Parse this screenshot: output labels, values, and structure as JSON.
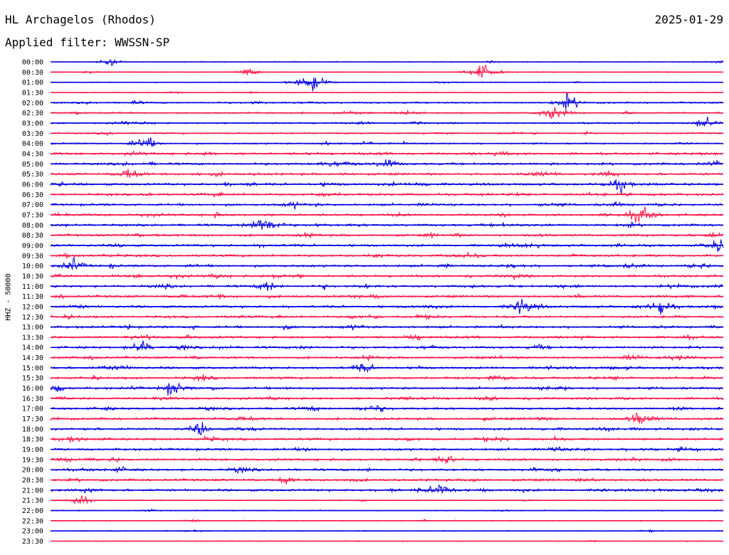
{
  "header": {
    "station": "HL Archagelos (Rhodos)",
    "date": "2025-01-29",
    "filter": "Applied filter: WWSSN-SP"
  },
  "axis": {
    "channel_label": "HHZ - 50000"
  },
  "colors": {
    "even": "#0000e6",
    "odd": "#ff1446"
  },
  "chart_data": {
    "type": "line",
    "title": "HL Archagelos (Rhodos)",
    "ylabel": "HHZ - 50000",
    "row_labels": [
      "00:00",
      "00:30",
      "01:00",
      "01:30",
      "02:00",
      "02:30",
      "03:00",
      "03:30",
      "04:00",
      "04:30",
      "05:00",
      "05:30",
      "06:00",
      "06:30",
      "07:00",
      "07:30",
      "08:00",
      "08:30",
      "09:00",
      "09:30",
      "10:00",
      "10:30",
      "11:00",
      "11:30",
      "12:00",
      "12:30",
      "13:00",
      "13:30",
      "14:00",
      "14:30",
      "15:00",
      "15:30",
      "16:00",
      "16:30",
      "17:00",
      "17:30",
      "18:00",
      "18:30",
      "19:00",
      "19:30",
      "20:00",
      "20:30",
      "21:00",
      "21:30",
      "22:00",
      "22:30",
      "23:00",
      "23:30"
    ],
    "row_colors_cycle": [
      "blue",
      "red"
    ],
    "row_duration_minutes": 30,
    "events": [
      {
        "row": "00:00",
        "minute": 2.6,
        "amplitude": 0.6
      },
      {
        "row": "00:30",
        "minute": 8.9,
        "amplitude": 0.6
      },
      {
        "row": "00:30",
        "minute": 19.3,
        "amplitude": 1.5
      },
      {
        "row": "01:00",
        "minute": 11.6,
        "amplitude": 1.8
      },
      {
        "row": "02:00",
        "minute": 23.1,
        "amplitude": 1.3
      },
      {
        "row": "02:30",
        "minute": 22.4,
        "amplitude": 1.4
      },
      {
        "row": "03:00",
        "minute": 29.2,
        "amplitude": 1.0
      },
      {
        "row": "04:00",
        "minute": 4.3,
        "amplitude": 0.9
      },
      {
        "row": "05:00",
        "minute": 15.0,
        "amplitude": 0.8
      },
      {
        "row": "05:30",
        "minute": 3.5,
        "amplitude": 1.0
      },
      {
        "row": "06:00",
        "minute": 25.4,
        "amplitude": 1.0
      },
      {
        "row": "07:30",
        "minute": 26.3,
        "amplitude": 1.4
      },
      {
        "row": "08:00",
        "minute": 9.4,
        "amplitude": 1.6
      },
      {
        "row": "09:00",
        "minute": 29.8,
        "amplitude": 0.8
      },
      {
        "row": "10:00",
        "minute": 1.0,
        "amplitude": 1.0
      },
      {
        "row": "11:00",
        "minute": 9.7,
        "amplitude": 0.9
      },
      {
        "row": "12:00",
        "minute": 21.0,
        "amplitude": 1.0
      },
      {
        "row": "12:00",
        "minute": 27.2,
        "amplitude": 1.1
      },
      {
        "row": "14:00",
        "minute": 4.1,
        "amplitude": 1.0
      },
      {
        "row": "15:00",
        "minute": 14.0,
        "amplitude": 0.7
      },
      {
        "row": "16:00",
        "minute": 5.5,
        "amplitude": 1.0
      },
      {
        "row": "17:30",
        "minute": 26.2,
        "amplitude": 1.2
      },
      {
        "row": "18:00",
        "minute": 6.7,
        "amplitude": 1.0
      },
      {
        "row": "19:30",
        "minute": 17.7,
        "amplitude": 0.8
      },
      {
        "row": "21:00",
        "minute": 17.4,
        "amplitude": 1.3
      },
      {
        "row": "21:30",
        "minute": 1.3,
        "amplitude": 0.9
      }
    ]
  }
}
